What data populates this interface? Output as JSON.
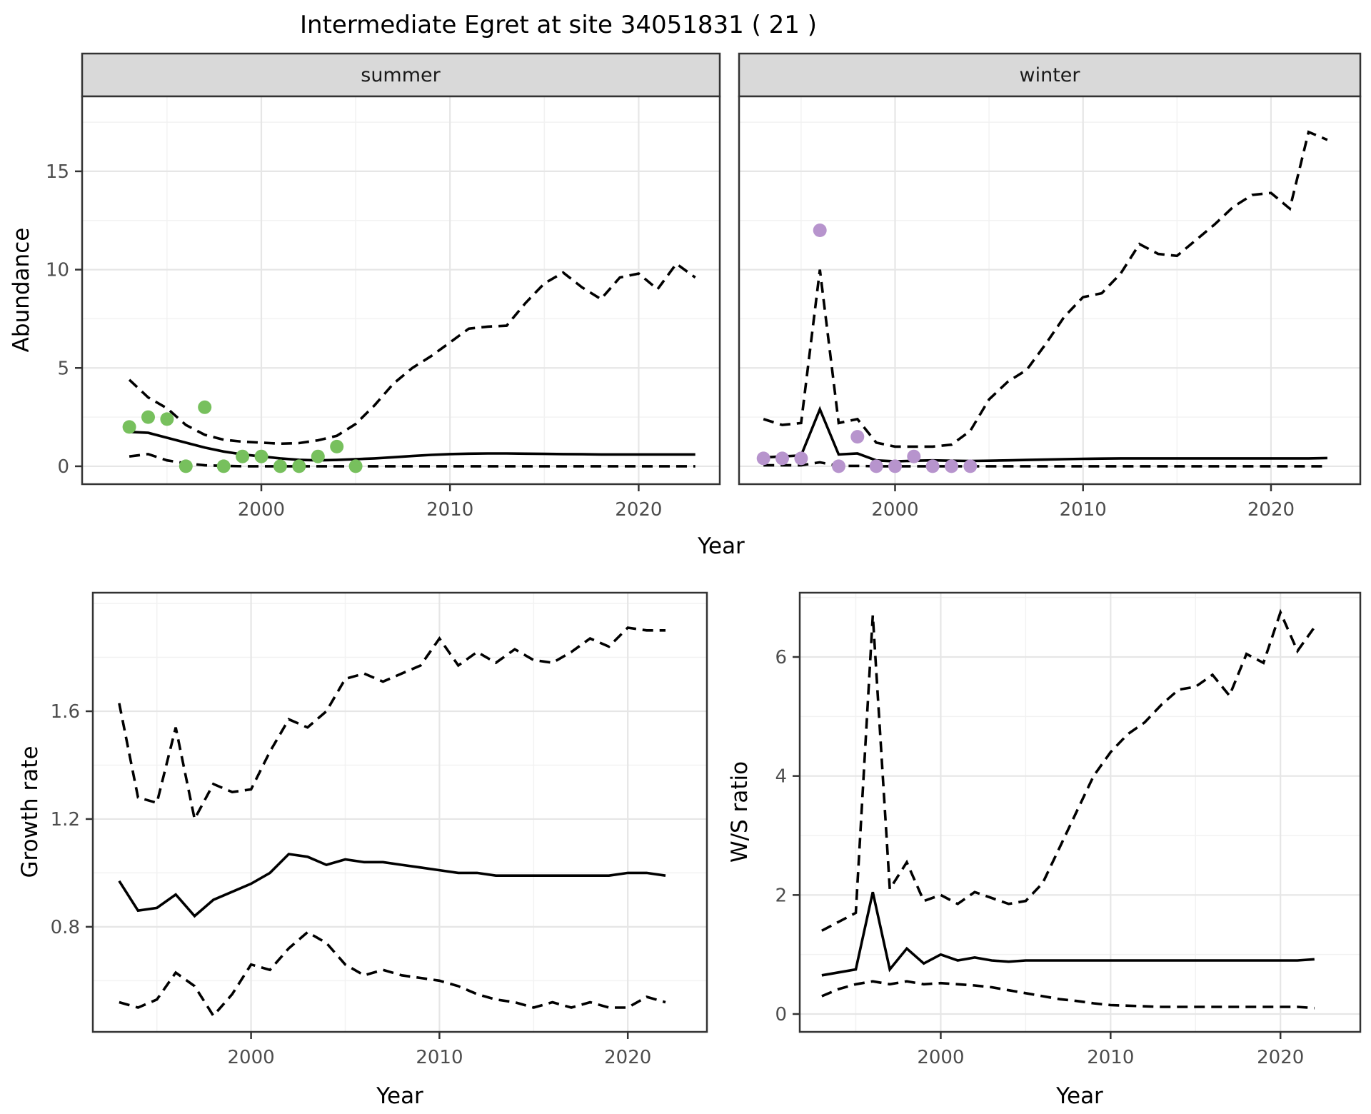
{
  "title": "Intermediate Egret at site 34051831 ( 21 )",
  "colors": {
    "summer_points": "#77C05D",
    "winter_points": "#B794CD",
    "fit_line": "#000000",
    "ci_line": "#000000",
    "strip_bg": "#D9D9D9",
    "panel_bg": "#FFFFFF",
    "panel_border": "#333333",
    "grid_major": "#E6E6E6",
    "grid_minor": "#F2F2F2",
    "tick_text": "#4D4D4D"
  },
  "chart_data": [
    {
      "id": "abundance_summer",
      "type": "line",
      "facet": "summer",
      "x_axis": {
        "label": "Year",
        "range": [
          1990.5,
          2024.3
        ],
        "ticks": [
          {
            "v": 2000,
            "label": "2000"
          },
          {
            "v": 2010,
            "label": "2010"
          },
          {
            "v": 2020,
            "label": "2020"
          }
        ],
        "minor": [
          1995,
          2005,
          2015
        ]
      },
      "y_axis": {
        "label": "Abundance",
        "range": [
          -0.91,
          18.81
        ],
        "ticks": [
          {
            "v": 0,
            "label": "0"
          },
          {
            "v": 5,
            "label": "5"
          },
          {
            "v": 10,
            "label": "10"
          },
          {
            "v": 15,
            "label": "15"
          }
        ],
        "minor": [
          2.5,
          7.5,
          12.5,
          17.5
        ]
      },
      "x_years": [
        1993,
        1994,
        1995,
        1996,
        1997,
        1998,
        1999,
        2000,
        2001,
        2002,
        2003,
        2004,
        2005,
        2006,
        2007,
        2008,
        2009,
        2010,
        2011,
        2012,
        2013,
        2014,
        2015,
        2016,
        2017,
        2018,
        2019,
        2020,
        2021,
        2022,
        2023
      ],
      "fit": [
        1.75,
        1.7,
        1.45,
        1.2,
        0.95,
        0.75,
        0.6,
        0.5,
        0.4,
        0.33,
        0.3,
        0.32,
        0.36,
        0.4,
        0.46,
        0.52,
        0.58,
        0.62,
        0.64,
        0.65,
        0.65,
        0.64,
        0.63,
        0.62,
        0.61,
        0.6,
        0.6,
        0.6,
        0.6,
        0.6,
        0.6
      ],
      "upper": [
        4.4,
        3.5,
        2.95,
        2.1,
        1.6,
        1.35,
        1.25,
        1.2,
        1.15,
        1.18,
        1.32,
        1.55,
        2.15,
        3.1,
        4.2,
        5.0,
        5.6,
        6.3,
        7.0,
        7.1,
        7.15,
        8.3,
        9.3,
        9.85,
        9.1,
        8.5,
        9.6,
        9.8,
        9.0,
        10.3,
        9.6
      ],
      "lower": [
        0.5,
        0.62,
        0.3,
        0.15,
        0.05,
        0.02,
        0.0,
        0.0,
        0.0,
        0.0,
        0.0,
        0.0,
        0.0,
        0.0,
        0.0,
        0.0,
        0.0,
        0.0,
        0.0,
        0.0,
        0.0,
        0.0,
        0.0,
        0.0,
        0.0,
        0.0,
        0.0,
        0.0,
        0.0,
        0.0,
        0.0
      ],
      "obs": {
        "name": "observed-abundance",
        "color": "#77C05D",
        "x": [
          1993,
          1994,
          1995,
          1996,
          1997,
          1998,
          1999,
          2000,
          2001,
          2002,
          2003,
          2004,
          2005
        ],
        "y": [
          2,
          2.5,
          2.4,
          0,
          3,
          0,
          0.5,
          0.5,
          0,
          0,
          0.5,
          1,
          0
        ]
      }
    },
    {
      "id": "abundance_winter",
      "type": "line",
      "facet": "winter",
      "x_axis": {
        "label": "Year",
        "range": [
          1991.7,
          2024.75
        ],
        "ticks": [
          {
            "v": 2000,
            "label": "2000"
          },
          {
            "v": 2010,
            "label": "2010"
          },
          {
            "v": 2020,
            "label": "2020"
          }
        ],
        "minor": [
          1995,
          2005,
          2015
        ]
      },
      "y_axis": {
        "label": "Abundance",
        "range": [
          -0.91,
          18.81
        ],
        "ticks": [
          {
            "v": 0,
            "label": "0"
          },
          {
            "v": 5,
            "label": "5"
          },
          {
            "v": 10,
            "label": "10"
          },
          {
            "v": 15,
            "label": "15"
          }
        ],
        "minor": [
          2.5,
          7.5,
          12.5,
          17.5
        ]
      },
      "x_years": [
        1993,
        1994,
        1995,
        1996,
        1997,
        1998,
        1999,
        2000,
        2001,
        2002,
        2003,
        2004,
        2005,
        2006,
        2007,
        2008,
        2009,
        2010,
        2011,
        2012,
        2013,
        2014,
        2015,
        2016,
        2017,
        2018,
        2019,
        2020,
        2021,
        2022,
        2023
      ],
      "fit": [
        0.45,
        0.5,
        0.55,
        2.9,
        0.6,
        0.65,
        0.3,
        0.25,
        0.28,
        0.3,
        0.28,
        0.27,
        0.28,
        0.3,
        0.32,
        0.34,
        0.36,
        0.38,
        0.39,
        0.4,
        0.4,
        0.4,
        0.4,
        0.4,
        0.4,
        0.4,
        0.4,
        0.4,
        0.4,
        0.4,
        0.42
      ],
      "upper": [
        2.4,
        2.1,
        2.2,
        10.0,
        2.2,
        2.4,
        1.2,
        1.0,
        1.0,
        1.0,
        1.1,
        1.8,
        3.4,
        4.3,
        4.9,
        6.2,
        7.6,
        8.6,
        8.8,
        9.8,
        11.3,
        10.8,
        10.7,
        11.5,
        12.3,
        13.2,
        13.8,
        13.9,
        13.1,
        17.0,
        16.6
      ],
      "lower": [
        0.05,
        0.05,
        0.05,
        0.2,
        0.02,
        0.02,
        0.0,
        0.0,
        0.0,
        0.0,
        0.0,
        0.0,
        0.0,
        0.0,
        0.0,
        0.0,
        0.0,
        0.0,
        0.0,
        0.0,
        0.0,
        0.0,
        0.0,
        0.0,
        0.0,
        0.0,
        0.0,
        0.0,
        0.0,
        0.0,
        0.0
      ],
      "obs": {
        "name": "observed-abundance",
        "color": "#B794CD",
        "x": [
          1993,
          1994,
          1995,
          1996,
          1997,
          1998,
          1999,
          2000,
          2001,
          2002,
          2003,
          2004
        ],
        "y": [
          0.4,
          0.4,
          0.4,
          12,
          0,
          1.5,
          0,
          0,
          0.5,
          0,
          0,
          0
        ]
      }
    },
    {
      "id": "growth_rate",
      "type": "line",
      "facet": null,
      "x_axis": {
        "label": "Year",
        "range": [
          1991.6,
          2024.2
        ],
        "ticks": [
          {
            "v": 2000,
            "label": "2000"
          },
          {
            "v": 2010,
            "label": "2010"
          },
          {
            "v": 2020,
            "label": "2020"
          }
        ],
        "minor": [
          1995,
          2005,
          2015
        ]
      },
      "y_axis": {
        "label": "Growth rate",
        "range": [
          0.41,
          2.04
        ],
        "ticks": [
          {
            "v": 0.8,
            "label": "0.8"
          },
          {
            "v": 1.2,
            "label": "1.2"
          },
          {
            "v": 1.6,
            "label": "1.6"
          }
        ],
        "minor": [
          0.6,
          1.0,
          1.4,
          1.8,
          2.0
        ]
      },
      "x_years": [
        1993,
        1994,
        1995,
        1996,
        1997,
        1998,
        1999,
        2000,
        2001,
        2002,
        2003,
        2004,
        2005,
        2006,
        2007,
        2008,
        2009,
        2010,
        2011,
        2012,
        2013,
        2014,
        2015,
        2016,
        2017,
        2018,
        2019,
        2020,
        2021,
        2022
      ],
      "fit": [
        0.97,
        0.86,
        0.87,
        0.92,
        0.84,
        0.9,
        0.93,
        0.96,
        1.0,
        1.07,
        1.06,
        1.03,
        1.05,
        1.04,
        1.04,
        1.03,
        1.02,
        1.01,
        1.0,
        1.0,
        0.99,
        0.99,
        0.99,
        0.99,
        0.99,
        0.99,
        0.99,
        1.0,
        1.0,
        0.99
      ],
      "upper": [
        1.63,
        1.28,
        1.26,
        1.54,
        1.2,
        1.33,
        1.3,
        1.31,
        1.45,
        1.57,
        1.54,
        1.6,
        1.72,
        1.74,
        1.71,
        1.74,
        1.77,
        1.87,
        1.77,
        1.82,
        1.78,
        1.83,
        1.79,
        1.78,
        1.82,
        1.87,
        1.84,
        1.91,
        1.9,
        1.9
      ],
      "lower": [
        0.52,
        0.5,
        0.53,
        0.63,
        0.58,
        0.47,
        0.55,
        0.66,
        0.64,
        0.72,
        0.78,
        0.74,
        0.66,
        0.62,
        0.64,
        0.62,
        0.61,
        0.6,
        0.58,
        0.55,
        0.53,
        0.52,
        0.5,
        0.52,
        0.5,
        0.52,
        0.5,
        0.5,
        0.54,
        0.52
      ],
      "obs": null
    },
    {
      "id": "ws_ratio",
      "type": "line",
      "facet": null,
      "x_axis": {
        "label": "Year",
        "range": [
          1991.7,
          2024.7
        ],
        "ticks": [
          {
            "v": 2000,
            "label": "2000"
          },
          {
            "v": 2010,
            "label": "2010"
          },
          {
            "v": 2020,
            "label": "2020"
          }
        ],
        "minor": [
          1995,
          2005,
          2015
        ]
      },
      "y_axis": {
        "label": "W/S ratio",
        "range": [
          -0.3,
          7.08
        ],
        "ticks": [
          {
            "v": 0,
            "label": "0"
          },
          {
            "v": 2,
            "label": "2"
          },
          {
            "v": 4,
            "label": "4"
          },
          {
            "v": 6,
            "label": "6"
          }
        ],
        "minor": [
          1,
          3,
          5,
          7
        ]
      },
      "x_years": [
        1993,
        1994,
        1995,
        1996,
        1997,
        1998,
        1999,
        2000,
        2001,
        2002,
        2003,
        2004,
        2005,
        2006,
        2007,
        2008,
        2009,
        2010,
        2011,
        2012,
        2013,
        2014,
        2015,
        2016,
        2017,
        2018,
        2019,
        2020,
        2021,
        2022
      ],
      "fit": [
        0.65,
        0.7,
        0.75,
        2.05,
        0.75,
        1.1,
        0.85,
        1.0,
        0.9,
        0.95,
        0.9,
        0.88,
        0.9,
        0.9,
        0.9,
        0.9,
        0.9,
        0.9,
        0.9,
        0.9,
        0.9,
        0.9,
        0.9,
        0.9,
        0.9,
        0.9,
        0.9,
        0.9,
        0.9,
        0.92
      ],
      "upper": [
        1.4,
        1.55,
        1.7,
        6.7,
        2.1,
        2.55,
        1.9,
        2.0,
        1.85,
        2.05,
        1.95,
        1.85,
        1.9,
        2.2,
        2.8,
        3.4,
        4.0,
        4.4,
        4.7,
        4.9,
        5.2,
        5.45,
        5.5,
        5.7,
        5.35,
        6.05,
        5.9,
        6.75,
        6.1,
        6.5
      ],
      "lower": [
        0.3,
        0.42,
        0.5,
        0.55,
        0.5,
        0.55,
        0.5,
        0.52,
        0.5,
        0.48,
        0.45,
        0.4,
        0.35,
        0.3,
        0.25,
        0.22,
        0.18,
        0.15,
        0.14,
        0.13,
        0.12,
        0.12,
        0.12,
        0.12,
        0.12,
        0.12,
        0.12,
        0.12,
        0.12,
        0.1
      ],
      "obs": null
    }
  ]
}
